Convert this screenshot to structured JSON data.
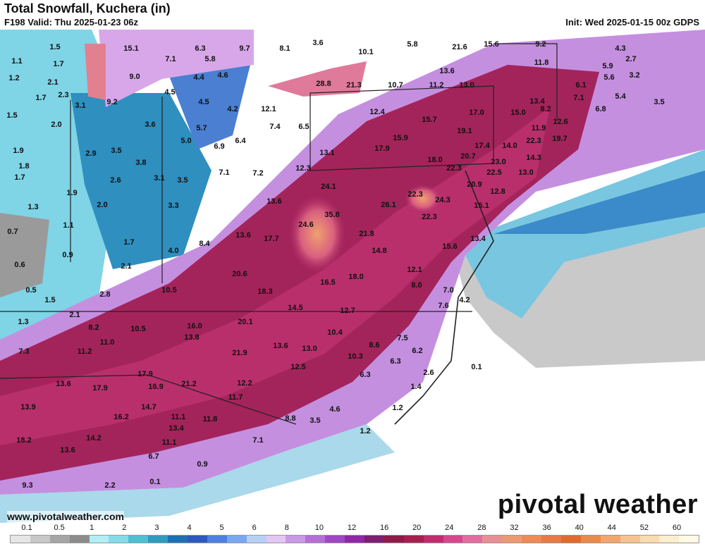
{
  "header": {
    "title": "Total Snowfall, Kuchera (in)",
    "valid": "F198 Valid: Thu 2025-01-23 06z",
    "init": "Init: Wed 2025-01-15 00z GDPS"
  },
  "footer": {
    "website": "www.pivotalweather.com",
    "brand": "pivotal weather"
  },
  "legend": {
    "ticks": [
      "0.1",
      "0.5",
      "1",
      "2",
      "3",
      "4",
      "5",
      "6",
      "8",
      "10",
      "12",
      "16",
      "20",
      "24",
      "28",
      "32",
      "36",
      "40",
      "44",
      "52",
      "60"
    ],
    "colors": [
      "#e6e6e6",
      "#c8c8c8",
      "#a5a5a5",
      "#8c8c8c",
      "#b3eef5",
      "#85dce8",
      "#4fbfd4",
      "#2f9cbf",
      "#1f6fb4",
      "#2e57bf",
      "#4f7fe0",
      "#7aa8f0",
      "#b7cff5",
      "#e2c7f2",
      "#c998e6",
      "#b46fd6",
      "#9f47c4",
      "#8f27a6",
      "#7c1f6f",
      "#8e1b4a",
      "#a5204f",
      "#c22b6e",
      "#d6478c",
      "#e26d9e",
      "#e88f95",
      "#ec9a73",
      "#ee8a56",
      "#e77a45",
      "#e06a2e",
      "#e98a4a",
      "#f0a66e",
      "#f5c38f",
      "#f8dbb0",
      "#fbeecf",
      "#fff8e4"
    ],
    "colors_are": "ordered low to high"
  },
  "map": {
    "values": [
      {
        "v": "1.5"
      },
      {
        "v": "15.1"
      },
      {
        "v": "6.3"
      },
      {
        "v": "9.7"
      },
      {
        "v": "8.1"
      },
      {
        "v": "3.6"
      },
      {
        "v": "10.1"
      },
      {
        "v": "5.8"
      },
      {
        "v": "21.6"
      },
      {
        "v": "15.6"
      },
      {
        "v": "9.2"
      },
      {
        "v": "4.3"
      },
      {
        "v": "1.1"
      },
      {
        "v": "1.7"
      },
      {
        "v": "7.1"
      },
      {
        "v": "5.8"
      },
      {
        "v": "2.7"
      },
      {
        "v": "5.9"
      },
      {
        "v": "11.8"
      },
      {
        "v": "1.2"
      },
      {
        "v": "9.0"
      },
      {
        "v": "4.4"
      },
      {
        "v": "4.6"
      },
      {
        "v": "13.6"
      },
      {
        "v": "5.6"
      },
      {
        "v": "3.2"
      },
      {
        "v": "2.1"
      },
      {
        "v": "28.8"
      },
      {
        "v": "21.3"
      },
      {
        "v": "10.7"
      },
      {
        "v": "11.2"
      },
      {
        "v": "13.0"
      },
      {
        "v": "6.1"
      },
      {
        "v": "1.7"
      },
      {
        "v": "2.3"
      },
      {
        "v": "4.5"
      },
      {
        "v": "7.1"
      },
      {
        "v": "5.4"
      },
      {
        "v": "3.5"
      },
      {
        "v": "3.1"
      },
      {
        "v": "9.2"
      },
      {
        "v": "4.5"
      },
      {
        "v": "4.2"
      },
      {
        "v": "12.1"
      },
      {
        "v": "12.4"
      },
      {
        "v": "13.4"
      },
      {
        "v": "8.2"
      },
      {
        "v": "6.8"
      },
      {
        "v": "1.5"
      },
      {
        "v": "17.0"
      },
      {
        "v": "15.0"
      },
      {
        "v": "15.7"
      },
      {
        "v": "2.0"
      },
      {
        "v": "3.6"
      },
      {
        "v": "7.4"
      },
      {
        "v": "6.5"
      },
      {
        "v": "19.1"
      },
      {
        "v": "11.9"
      },
      {
        "v": "12.6"
      },
      {
        "v": "5.7"
      },
      {
        "v": "15.9"
      },
      {
        "v": "22.3"
      },
      {
        "v": "19.7"
      },
      {
        "v": "5.0"
      },
      {
        "v": "6.4"
      },
      {
        "v": "17.4"
      },
      {
        "v": "14.0"
      },
      {
        "v": "1.9"
      },
      {
        "v": "2.9"
      },
      {
        "v": "3.5"
      },
      {
        "v": "6.9"
      },
      {
        "v": "13.1"
      },
      {
        "v": "17.9"
      },
      {
        "v": "20.7"
      },
      {
        "v": "14.3"
      },
      {
        "v": "1.8"
      },
      {
        "v": "3.8"
      },
      {
        "v": "18.0"
      },
      {
        "v": "23.0"
      },
      {
        "v": "7.1"
      },
      {
        "v": "7.2"
      },
      {
        "v": "12.3"
      },
      {
        "v": "22.3"
      },
      {
        "v": "22.5"
      },
      {
        "v": "13.0"
      },
      {
        "v": "1.7"
      },
      {
        "v": "2.6"
      },
      {
        "v": "3.1"
      },
      {
        "v": "3.5"
      },
      {
        "v": "24.1"
      },
      {
        "v": "20.9"
      },
      {
        "v": "12.8"
      },
      {
        "v": "1.9"
      },
      {
        "v": "22.3"
      },
      {
        "v": "24.3"
      },
      {
        "v": "1.3"
      },
      {
        "v": "2.0"
      },
      {
        "v": "3.3"
      },
      {
        "v": "13.6"
      },
      {
        "v": "26.1"
      },
      {
        "v": "15.1"
      },
      {
        "v": "35.8"
      },
      {
        "v": "22.3"
      },
      {
        "v": "1.1"
      },
      {
        "v": "24.6"
      },
      {
        "v": "0.7"
      },
      {
        "v": "13.6"
      },
      {
        "v": "17.7"
      },
      {
        "v": "21.8"
      },
      {
        "v": "13.4"
      },
      {
        "v": "1.7"
      },
      {
        "v": "8.4"
      },
      {
        "v": "15.6"
      },
      {
        "v": "4.0"
      },
      {
        "v": "14.8"
      },
      {
        "v": "0.9"
      },
      {
        "v": "0.6"
      },
      {
        "v": "2.1"
      },
      {
        "v": "12.1"
      },
      {
        "v": "20.6"
      },
      {
        "v": "18.0"
      },
      {
        "v": "0.5"
      },
      {
        "v": "2.8"
      },
      {
        "v": "10.5"
      },
      {
        "v": "18.3"
      },
      {
        "v": "16.5"
      },
      {
        "v": "8.0"
      },
      {
        "v": "7.0"
      },
      {
        "v": "1.5"
      },
      {
        "v": "4.2"
      },
      {
        "v": "14.5"
      },
      {
        "v": "12.7"
      },
      {
        "v": "7.6"
      },
      {
        "v": "2.1"
      },
      {
        "v": "1.3"
      },
      {
        "v": "20.1"
      },
      {
        "v": "8.2"
      },
      {
        "v": "10.5"
      },
      {
        "v": "16.0"
      },
      {
        "v": "10.4"
      },
      {
        "v": "13.8"
      },
      {
        "v": "7.5"
      },
      {
        "v": "11.0"
      },
      {
        "v": "8.6"
      },
      {
        "v": "7.3"
      },
      {
        "v": "11.2"
      },
      {
        "v": "13.6"
      },
      {
        "v": "13.0"
      },
      {
        "v": "6.2"
      },
      {
        "v": "21.9"
      },
      {
        "v": "10.3"
      },
      {
        "v": "6.3"
      },
      {
        "v": "0.1"
      },
      {
        "v": "12.5"
      },
      {
        "v": "2.6"
      },
      {
        "v": "17.9"
      },
      {
        "v": "6.3"
      },
      {
        "v": "13.6"
      },
      {
        "v": "17.9"
      },
      {
        "v": "16.9"
      },
      {
        "v": "21.2"
      },
      {
        "v": "12.2"
      },
      {
        "v": "1.4"
      },
      {
        "v": "13.9"
      },
      {
        "v": "11.7"
      },
      {
        "v": "14.7"
      },
      {
        "v": "4.6"
      },
      {
        "v": "1.2"
      },
      {
        "v": "16.2"
      },
      {
        "v": "11.1"
      },
      {
        "v": "11.8"
      },
      {
        "v": "8.8"
      },
      {
        "v": "3.5"
      },
      {
        "v": "13.4"
      },
      {
        "v": "1.2"
      },
      {
        "v": "18.2"
      },
      {
        "v": "14.2"
      },
      {
        "v": "11.1"
      },
      {
        "v": "7.1"
      },
      {
        "v": "13.6"
      },
      {
        "v": "6.7"
      },
      {
        "v": "0.9"
      },
      {
        "v": "0.1"
      },
      {
        "v": "9.3"
      },
      {
        "v": "2.2"
      }
    ]
  }
}
